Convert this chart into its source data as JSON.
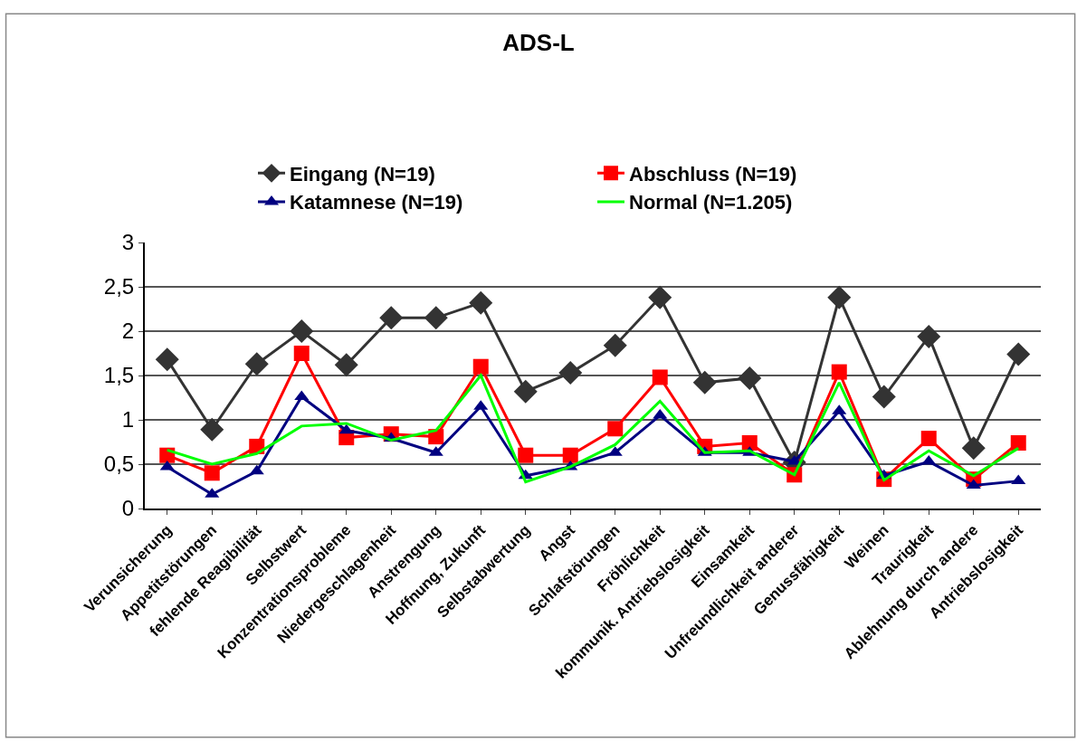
{
  "chart_data": {
    "type": "line",
    "title": "ADS-L",
    "categories": [
      "Verunsicherung",
      "Appetitstörungen",
      "fehlende Reagibilität",
      "Selbstwert",
      "Konzentrationsprobleme",
      "Niedergeschlagenheit",
      "Anstrengung",
      "Hoffnung, Zukunft",
      "Selbstabwertung",
      "Angst",
      "Schlafstörungen",
      "Fröhlichkeit",
      "kommunik. Antriebslosigkeit",
      "Einsamkeit",
      "Unfreundlichkeit anderer",
      "Genussfähigkeit",
      "Weinen",
      "Traurigkeit",
      "Ablehnung durch andere",
      "Antriebslosigkeit"
    ],
    "series": [
      {
        "name": "Eingang (N=19)",
        "color": "#333333",
        "marker": "diamond",
        "values": [
          1.68,
          0.89,
          1.63,
          2.0,
          1.62,
          2.15,
          2.15,
          2.32,
          1.32,
          1.53,
          1.84,
          2.38,
          1.42,
          1.47,
          0.52,
          2.38,
          1.26,
          1.94,
          0.68,
          1.74
        ]
      },
      {
        "name": "Abschluss (N=19)",
        "color": "#ff0000",
        "marker": "square",
        "values": [
          0.6,
          0.4,
          0.7,
          1.75,
          0.8,
          0.84,
          0.81,
          1.6,
          0.6,
          0.6,
          0.9,
          1.48,
          0.7,
          0.74,
          0.38,
          1.54,
          0.33,
          0.79,
          0.33,
          0.74
        ]
      },
      {
        "name": "Katamnese (N=19)",
        "color": "#000080",
        "marker": "triangle",
        "values": [
          0.47,
          0.16,
          0.42,
          1.26,
          0.88,
          0.79,
          0.63,
          1.15,
          0.37,
          0.47,
          0.63,
          1.05,
          0.63,
          0.63,
          0.53,
          1.1,
          0.37,
          0.53,
          0.26,
          0.31
        ]
      },
      {
        "name": "Normal (N=1.205)",
        "color": "#00ff00",
        "marker": "none",
        "values": [
          0.66,
          0.5,
          0.62,
          0.93,
          0.96,
          0.77,
          0.88,
          1.5,
          0.3,
          0.47,
          0.72,
          1.21,
          0.63,
          0.65,
          0.38,
          1.42,
          0.32,
          0.65,
          0.37,
          0.68
        ]
      }
    ],
    "ylim": [
      0,
      3
    ],
    "yticks": [
      0,
      {
        "value": 0.5,
        "label": "0,5"
      },
      1,
      {
        "value": 1.5,
        "label": "1,5"
      },
      2,
      {
        "value": 2.5,
        "label": "2,5"
      },
      3
    ],
    "grid": "y",
    "legend": "top"
  }
}
